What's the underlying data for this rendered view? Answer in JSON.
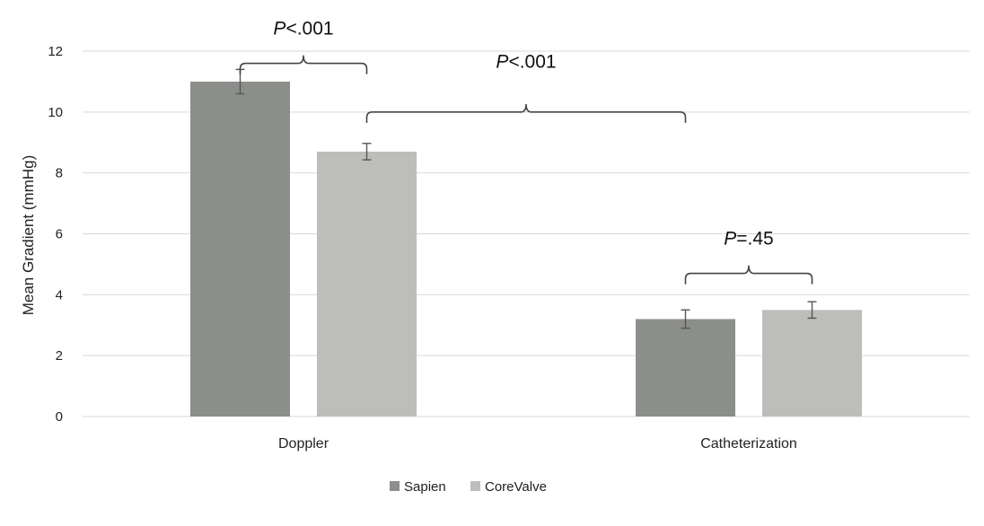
{
  "chart_data": {
    "type": "bar",
    "title": "",
    "xlabel": "",
    "ylabel": "Mean Gradient (mmHg)",
    "ylim": [
      0,
      12
    ],
    "yticks": [
      0,
      2,
      4,
      6,
      8,
      10,
      12
    ],
    "grid": true,
    "legend_position": "bottom",
    "categories": [
      "Doppler",
      "Catheterization"
    ],
    "series": [
      {
        "name": "Sapien",
        "color": "#8c8e8b",
        "values": [
          11.0,
          3.2
        ],
        "error": [
          0.4,
          0.3
        ]
      },
      {
        "name": "CoreValve",
        "color": "#bdbebb",
        "values": [
          8.7,
          3.5
        ],
        "error": [
          0.27,
          0.27
        ]
      }
    ],
    "annotations": [
      {
        "italic": "P",
        "rest": "<.001",
        "from": {
          "category": 0,
          "series": 0
        },
        "to": {
          "category": 0,
          "series": 1
        },
        "bracket_y": 11.6,
        "label_y": 12.55
      },
      {
        "italic": "P",
        "rest": "<.001",
        "from": {
          "category": 0,
          "series": 1
        },
        "to": {
          "category": 1,
          "series": 0
        },
        "bracket_y": 10.0,
        "label_y": 11.45
      },
      {
        "italic": "P",
        "rest": "=.45",
        "from": {
          "category": 1,
          "series": 0
        },
        "to": {
          "category": 1,
          "series": 1
        },
        "bracket_y": 4.7,
        "label_y": 5.65
      }
    ]
  }
}
